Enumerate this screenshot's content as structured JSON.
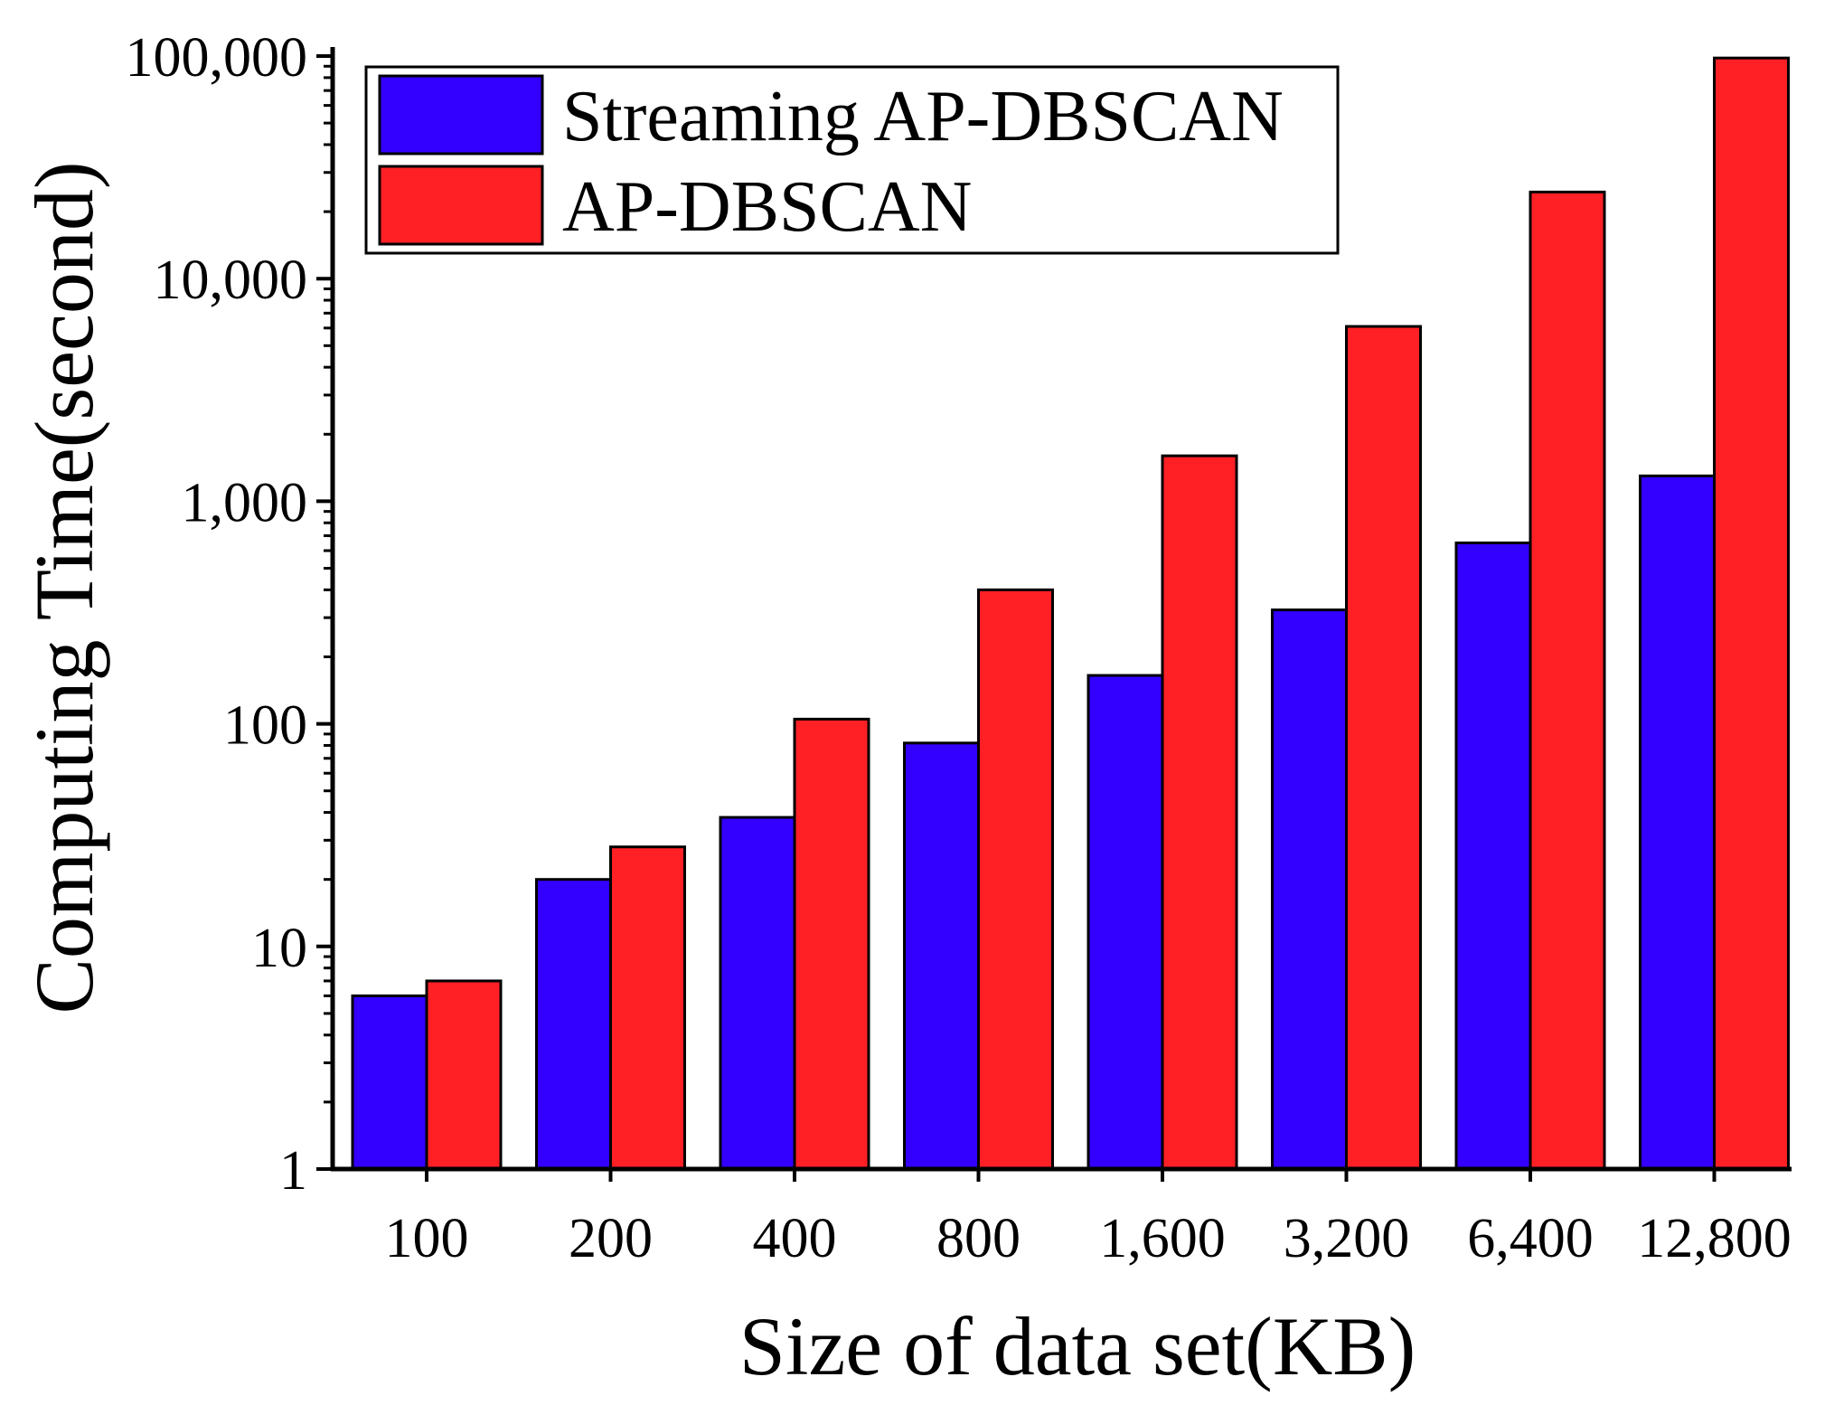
{
  "chart_data": {
    "type": "bar",
    "scale": "log",
    "xlabel": "Size of data set(KB)",
    "ylabel": "Computing Time(second)",
    "categories": [
      "100",
      "200",
      "400",
      "800",
      "1,600",
      "3,200",
      "6,400",
      "12,800"
    ],
    "y_ticks": [
      {
        "value": 1,
        "label": "1"
      },
      {
        "value": 10,
        "label": "10"
      },
      {
        "value": 100,
        "label": "100"
      },
      {
        "value": 1000,
        "label": "1,000"
      },
      {
        "value": 10000,
        "label": "10,000"
      },
      {
        "value": 100000,
        "label": "100,000"
      }
    ],
    "ylim": [
      1,
      100000
    ],
    "series": [
      {
        "name": "Streaming AP-DBSCAN",
        "color": "#3300ff",
        "values": [
          6,
          20,
          38,
          82,
          165,
          325,
          650,
          1300
        ]
      },
      {
        "name": "AP-DBSCAN",
        "color": "#ff2026",
        "values": [
          7,
          28,
          105,
          400,
          1600,
          6100,
          24500,
          98000
        ]
      }
    ],
    "legend_position": "top-left"
  }
}
